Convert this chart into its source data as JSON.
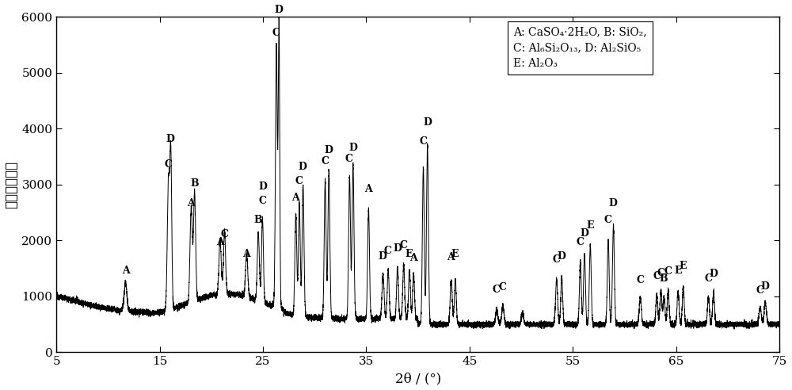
{
  "xmin": 5,
  "xmax": 75,
  "ymin": 0,
  "ymax": 6000,
  "xlabel": "2θ / (°)",
  "ylabel": "强度／计数率",
  "yticks": [
    0,
    1000,
    2000,
    3000,
    4000,
    5000,
    6000
  ],
  "xticks": [
    5,
    15,
    25,
    35,
    45,
    55,
    65,
    75
  ],
  "legend_text_line1": "A: CaSO₄·2H₂O, B: SiO₂,",
  "legend_text_line2": "C: Al₆Si₂O₁₃, D: Al₂SiO₅",
  "legend_text_line3": "E: Al₂O₃",
  "background_color": "#ffffff",
  "line_color": "#000000",
  "peak_labels": [
    [
      11.7,
      1300,
      "A"
    ],
    [
      15.85,
      3200,
      "C"
    ],
    [
      16.05,
      3650,
      "D"
    ],
    [
      18.05,
      2500,
      "A"
    ],
    [
      18.35,
      2850,
      "B"
    ],
    [
      20.85,
      1800,
      "A"
    ],
    [
      21.25,
      1950,
      "C"
    ],
    [
      23.4,
      1600,
      "A"
    ],
    [
      24.55,
      2200,
      "B"
    ],
    [
      24.95,
      2550,
      "C"
    ],
    [
      24.95,
      2800,
      "D"
    ],
    [
      26.3,
      5550,
      "C"
    ],
    [
      26.55,
      5960,
      "D"
    ],
    [
      28.15,
      2600,
      "A"
    ],
    [
      28.5,
      2900,
      "C"
    ],
    [
      28.85,
      3150,
      "D"
    ],
    [
      31.0,
      3250,
      "C"
    ],
    [
      31.35,
      3450,
      "D"
    ],
    [
      33.35,
      3300,
      "C"
    ],
    [
      33.7,
      3500,
      "D"
    ],
    [
      35.2,
      2750,
      "A"
    ],
    [
      36.6,
      1550,
      "D"
    ],
    [
      37.1,
      1650,
      "C"
    ],
    [
      38.0,
      1700,
      "D"
    ],
    [
      38.6,
      1750,
      "C"
    ],
    [
      39.15,
      1600,
      "E"
    ],
    [
      39.55,
      1530,
      "A"
    ],
    [
      40.5,
      3600,
      "C"
    ],
    [
      40.9,
      3950,
      "D"
    ],
    [
      43.2,
      1540,
      "A"
    ],
    [
      43.6,
      1600,
      "E"
    ],
    [
      47.6,
      950,
      "C"
    ],
    [
      48.2,
      1000,
      "C"
    ],
    [
      53.4,
      1500,
      "C"
    ],
    [
      53.9,
      1550,
      "D"
    ],
    [
      55.7,
      1800,
      "C"
    ],
    [
      56.1,
      1960,
      "D"
    ],
    [
      56.65,
      2100,
      "E"
    ],
    [
      58.4,
      2200,
      "C"
    ],
    [
      58.9,
      2500,
      "D"
    ],
    [
      61.5,
      1130,
      "C"
    ],
    [
      63.1,
      1200,
      "C"
    ],
    [
      63.5,
      1250,
      "C"
    ],
    [
      63.8,
      1150,
      "B"
    ],
    [
      64.2,
      1280,
      "C"
    ],
    [
      65.15,
      1300,
      "E"
    ],
    [
      65.65,
      1380,
      "E"
    ],
    [
      68.1,
      1150,
      "C"
    ],
    [
      68.6,
      1240,
      "D"
    ],
    [
      73.1,
      940,
      "C"
    ],
    [
      73.6,
      1020,
      "D"
    ]
  ]
}
